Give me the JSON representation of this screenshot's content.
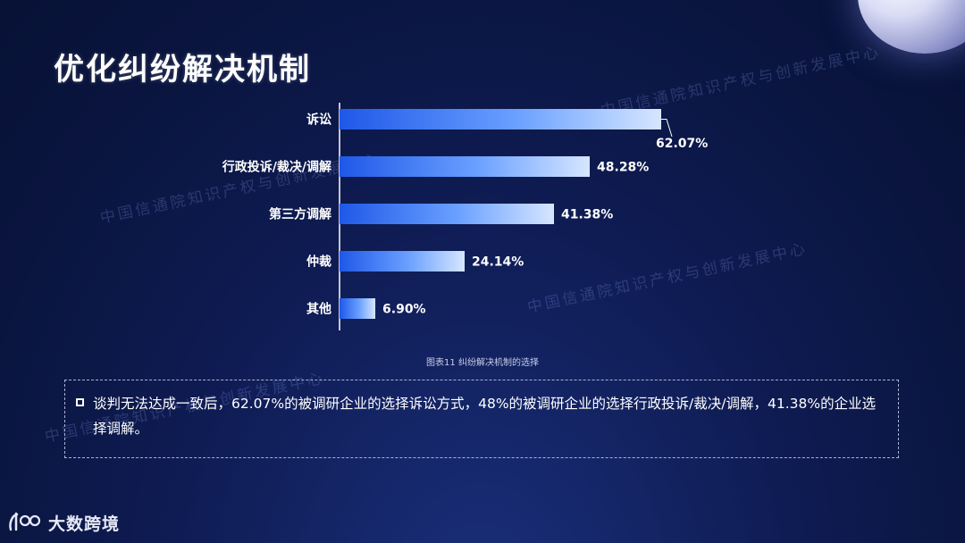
{
  "title": "优化纠纷解决机制",
  "chart_data": {
    "type": "bar",
    "orientation": "horizontal",
    "categories": [
      "诉讼",
      "行政投诉/裁决/调解",
      "第三方调解",
      "仲裁",
      "其他"
    ],
    "values": [
      62.07,
      48.28,
      41.38,
      24.14,
      6.9
    ],
    "value_labels": [
      "62.07%",
      "48.28%",
      "41.38%",
      "24.14%",
      "6.90%"
    ],
    "unit": "%",
    "xlim": [
      0,
      70
    ],
    "grid": false,
    "legend": "none",
    "bar_gradient": [
      "#1f58e8",
      "#6aa0ff",
      "#d6e6ff"
    ]
  },
  "caption": "图表11 纠纷解决机制的选择",
  "note": {
    "text": "谈判无法达成一致后，62.07%的被调研企业的选择诉讼方式，48%的被调研企业的选择行政投诉/裁决/调解，41.38%的企业选择调解。"
  },
  "watermark": "中国信通院知识产权与创新发展中心",
  "logo": {
    "mark": "1688-logo-icon",
    "text": "大数跨境"
  }
}
